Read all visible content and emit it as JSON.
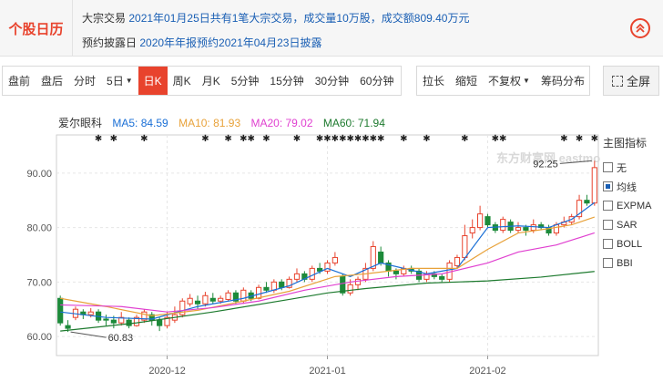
{
  "calendar": {
    "title": "个股日历",
    "line1_prefix": "大宗交易",
    "line1_detail": "2021年01月25日共有1笔大宗交易，成交量10万股，成交额809.40万元",
    "line2_prefix": "预约披露日",
    "line2_detail": "2020年年报预约2021年04月23日披露",
    "collapse_icon": "double-chevron-up-icon"
  },
  "toolbar": {
    "periods": [
      "盘前",
      "盘后",
      "分时",
      "5日",
      "日K",
      "周K",
      "月K",
      "5分钟",
      "15分钟",
      "30分钟",
      "60分钟"
    ],
    "active_period": "日K",
    "dropdown_period": "5日",
    "tools": [
      "拉长",
      "缩短",
      "不复权",
      "筹码分布"
    ],
    "dropdown_tool": "不复权",
    "fullscreen_label": "全屏"
  },
  "legend": {
    "name": "爱尔眼科",
    "ma5": "MA5: 84.59",
    "ma10": "MA10: 81.93",
    "ma20": "MA20: 79.02",
    "ma60": "MA60: 71.94"
  },
  "indicator_panel": {
    "title": "主图指标",
    "items": [
      {
        "label": "无",
        "checked": false
      },
      {
        "label": "均线",
        "checked": true
      },
      {
        "label": "EXPMA",
        "checked": false
      },
      {
        "label": "SAR",
        "checked": false
      },
      {
        "label": "BOLL",
        "checked": false
      },
      {
        "label": "BBI",
        "checked": false
      }
    ]
  },
  "watermark": "东方财富网 eastmoney.com",
  "colors": {
    "up": "#e8432d",
    "down": "#1d8a3a",
    "ma5": "#1a6fd6",
    "ma10": "#e8a23a",
    "ma20": "#e040d0",
    "ma60": "#1d7a2e",
    "accent": "#e8432d"
  },
  "chart_data": {
    "type": "candlestick",
    "ylim": [
      56.5,
      97
    ],
    "y_ticks": [
      "90.00",
      "80.00",
      "70.00",
      "60.00"
    ],
    "x_ticks": [
      {
        "label": "2020-12",
        "index": 14
      },
      {
        "label": "2021-01",
        "index": 35
      },
      {
        "label": "2021-02",
        "index": 56
      }
    ],
    "max_label": "92.25",
    "min_label": "60.83",
    "candles": [
      [
        67.0,
        62.5,
        67.5,
        62.0
      ],
      [
        62.0,
        61.5,
        63.0,
        60.83
      ],
      [
        63.5,
        65.0,
        65.5,
        63.0
      ],
      [
        64.5,
        64.0,
        65.0,
        63.2
      ],
      [
        64.0,
        64.5,
        65.2,
        63.5
      ],
      [
        64.5,
        63.0,
        65.0,
        62.5
      ],
      [
        63.2,
        63.0,
        64.0,
        62.0
      ],
      [
        63.0,
        62.5,
        63.8,
        61.5
      ],
      [
        62.5,
        63.5,
        64.5,
        62.0
      ],
      [
        63.0,
        62.0,
        63.5,
        61.5
      ],
      [
        62.0,
        63.5,
        64.0,
        61.8
      ],
      [
        63.0,
        64.5,
        65.0,
        62.5
      ],
      [
        64.0,
        63.0,
        64.5,
        62.0
      ],
      [
        63.0,
        62.0,
        63.5,
        61.0
      ],
      [
        62.0,
        63.5,
        64.5,
        61.5
      ],
      [
        63.0,
        64.0,
        65.5,
        62.5
      ],
      [
        64.0,
        66.5,
        67.0,
        63.5
      ],
      [
        66.0,
        67.0,
        67.8,
        65.5
      ],
      [
        66.5,
        66.0,
        67.5,
        65.0
      ],
      [
        66.0,
        67.5,
        68.2,
        65.5
      ],
      [
        67.0,
        66.5,
        68.0,
        66.0
      ],
      [
        66.5,
        67.0,
        67.5,
        66.0
      ],
      [
        66.8,
        68.0,
        68.5,
        66.5
      ],
      [
        68.0,
        66.5,
        68.5,
        66.0
      ],
      [
        66.5,
        68.5,
        69.0,
        66.0
      ],
      [
        68.0,
        67.0,
        68.5,
        66.5
      ],
      [
        67.0,
        69.0,
        69.5,
        66.8
      ],
      [
        69.0,
        68.5,
        70.0,
        68.0
      ],
      [
        68.5,
        70.0,
        70.5,
        68.0
      ],
      [
        70.0,
        69.0,
        70.5,
        68.5
      ],
      [
        69.0,
        70.5,
        71.0,
        68.8
      ],
      [
        70.5,
        71.5,
        72.5,
        70.0
      ],
      [
        71.5,
        70.5,
        72.0,
        70.0
      ],
      [
        70.5,
        72.5,
        73.0,
        70.0
      ],
      [
        72.5,
        72.0,
        73.5,
        71.5
      ],
      [
        72.0,
        73.5,
        74.0,
        71.5
      ],
      [
        73.5,
        74.5,
        75.5,
        73.0
      ],
      [
        71.0,
        68.0,
        71.5,
        67.5
      ],
      [
        68.0,
        69.5,
        70.5,
        67.5
      ],
      [
        69.5,
        70.5,
        71.0,
        68.5
      ],
      [
        70.5,
        72.5,
        73.5,
        70.0
      ],
      [
        72.5,
        76.5,
        77.5,
        72.0
      ],
      [
        75.5,
        73.5,
        76.5,
        73.0
      ],
      [
        73.5,
        72.0,
        74.0,
        71.0
      ],
      [
        72.0,
        71.5,
        72.5,
        70.5
      ],
      [
        71.5,
        72.5,
        73.0,
        71.0
      ],
      [
        72.5,
        72.0,
        73.0,
        71.5
      ],
      [
        72.0,
        70.5,
        72.5,
        70.0
      ],
      [
        70.5,
        71.5,
        72.0,
        70.0
      ],
      [
        71.5,
        71.0,
        72.0,
        70.5
      ],
      [
        71.0,
        70.5,
        71.5,
        70.0
      ],
      [
        70.5,
        73.5,
        74.0,
        70.0
      ],
      [
        73.0,
        74.5,
        75.0,
        72.5
      ],
      [
        74.5,
        78.5,
        80.5,
        74.0
      ],
      [
        79.0,
        80.0,
        81.5,
        78.0
      ],
      [
        80.0,
        82.5,
        84.0,
        79.5
      ],
      [
        82.0,
        80.5,
        82.5,
        80.0
      ],
      [
        80.5,
        79.5,
        81.0,
        79.0
      ],
      [
        79.5,
        81.5,
        82.0,
        79.0
      ],
      [
        81.0,
        79.5,
        81.5,
        79.0
      ],
      [
        79.5,
        80.0,
        81.0,
        79.0
      ],
      [
        80.0,
        79.5,
        80.5,
        78.5
      ],
      [
        79.5,
        80.5,
        81.5,
        79.0
      ],
      [
        80.5,
        80.0,
        81.0,
        79.5
      ],
      [
        80.0,
        79.0,
        80.5,
        78.5
      ],
      [
        79.0,
        80.5,
        81.0,
        78.5
      ],
      [
        80.5,
        81.0,
        82.0,
        80.0
      ],
      [
        81.0,
        82.0,
        82.5,
        80.5
      ],
      [
        82.0,
        85.0,
        86.0,
        81.5
      ],
      [
        85.0,
        84.5,
        86.0,
        84.0
      ],
      [
        84.5,
        91.0,
        92.25,
        84.0
      ]
    ],
    "series": [
      {
        "name": "MA5",
        "color": "#1a6fd6",
        "values": [
          [
            0,
            64.5
          ],
          [
            6,
            63.5
          ],
          [
            12,
            63.2
          ],
          [
            18,
            65.5
          ],
          [
            24,
            67.0
          ],
          [
            30,
            69.3
          ],
          [
            35,
            72.5
          ],
          [
            38,
            71.0
          ],
          [
            42,
            73.5
          ],
          [
            48,
            71.5
          ],
          [
            52,
            72.5
          ],
          [
            56,
            80.0
          ],
          [
            60,
            80.3
          ],
          [
            64,
            80.0
          ],
          [
            67,
            81.5
          ],
          [
            70,
            84.59
          ]
        ]
      },
      {
        "name": "MA10",
        "color": "#e8a23a",
        "values": [
          [
            0,
            67.0
          ],
          [
            6,
            65.5
          ],
          [
            12,
            63.8
          ],
          [
            18,
            64.8
          ],
          [
            24,
            66.5
          ],
          [
            30,
            68.3
          ],
          [
            36,
            71.0
          ],
          [
            40,
            71.5
          ],
          [
            46,
            72.5
          ],
          [
            52,
            72.5
          ],
          [
            56,
            76.0
          ],
          [
            60,
            79.0
          ],
          [
            64,
            79.8
          ],
          [
            67,
            80.5
          ],
          [
            70,
            81.93
          ]
        ]
      },
      {
        "name": "MA20",
        "color": "#e040d0",
        "values": [
          [
            0,
            65.8
          ],
          [
            8,
            65.5
          ],
          [
            14,
            64.5
          ],
          [
            20,
            65.3
          ],
          [
            26,
            66.5
          ],
          [
            32,
            68.5
          ],
          [
            38,
            70.0
          ],
          [
            44,
            71.0
          ],
          [
            50,
            71.5
          ],
          [
            56,
            73.5
          ],
          [
            60,
            75.5
          ],
          [
            65,
            76.8
          ],
          [
            70,
            79.02
          ]
        ]
      },
      {
        "name": "MA60",
        "color": "#1d7a2e",
        "values": [
          [
            0,
            61.0
          ],
          [
            10,
            62.5
          ],
          [
            20,
            64.5
          ],
          [
            30,
            66.8
          ],
          [
            35,
            68.0
          ],
          [
            40,
            68.8
          ],
          [
            48,
            69.8
          ],
          [
            56,
            70.2
          ],
          [
            63,
            70.9
          ],
          [
            70,
            71.94
          ]
        ]
      }
    ],
    "markers": [
      5,
      7,
      11,
      19,
      22,
      24,
      25,
      27,
      31,
      34,
      35,
      36,
      37,
      38,
      39,
      40,
      41,
      42,
      45,
      48,
      53,
      57,
      58,
      66,
      68,
      70
    ]
  }
}
